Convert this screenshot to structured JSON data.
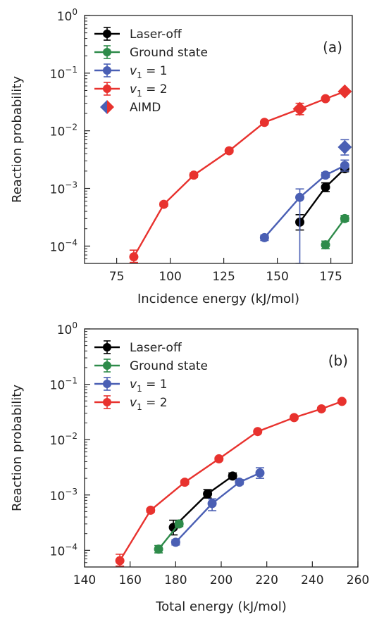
{
  "chart_data": [
    {
      "type": "line",
      "panel_label": "(a)",
      "xlabel": "Incidence energy (kJ/mol)",
      "ylabel": "Reaction probability",
      "xlim": [
        60,
        185
      ],
      "ylim": [
        5e-05,
        1
      ],
      "yscale": "log",
      "xticks": [
        75,
        100,
        125,
        150,
        175
      ],
      "yticks": [
        {
          "value": 1,
          "base": "10",
          "exp": "0"
        },
        {
          "value": 0.1,
          "base": "10",
          "exp": "−1"
        },
        {
          "value": 0.01,
          "base": "10",
          "exp": "−2"
        },
        {
          "value": 0.001,
          "base": "10",
          "exp": "−3"
        },
        {
          "value": 0.0001,
          "base": "10",
          "exp": "−4"
        }
      ],
      "legend_position": "upper-left",
      "series": [
        {
          "name": "Laser-off",
          "color": "#000000",
          "marker": "circle",
          "points": [
            {
              "x": 160.5,
              "y": 0.00026,
              "lo": 0.00019,
              "hi": 0.00035
            },
            {
              "x": 172.5,
              "y": 0.00105,
              "lo": 0.00088,
              "hi": 0.00125
            },
            {
              "x": 181.5,
              "y": 0.0022,
              "lo": 0.00195,
              "hi": 0.0025
            }
          ]
        },
        {
          "name": "Ground state",
          "color": "#2e8b4a",
          "marker": "circle",
          "points": [
            {
              "x": 172.5,
              "y": 0.000105,
              "lo": 9e-05,
              "hi": 0.000122
            },
            {
              "x": 181.5,
              "y": 0.0003,
              "lo": 0.00027,
              "hi": 0.00034
            }
          ]
        },
        {
          "name": "v1 = 1",
          "name_parts": [
            "v",
            "1",
            " = 1"
          ],
          "color": "#4a5fb4",
          "marker": "circle",
          "points": [
            {
              "x": 144,
              "y": 0.00014,
              "lo": 0.000125,
              "hi": 0.000155
            },
            {
              "x": 160.5,
              "y": 0.0007,
              "lo": 5e-05,
              "hi": 0.00098
            },
            {
              "x": 172.5,
              "y": 0.0017,
              "lo": 0.00155,
              "hi": 0.0019
            },
            {
              "x": 181.5,
              "y": 0.0025,
              "lo": 0.002,
              "hi": 0.0031
            }
          ]
        },
        {
          "name": "v1 = 2",
          "name_parts": [
            "v",
            "1",
            " = 2"
          ],
          "color": "#e8322e",
          "marker": "circle",
          "points": [
            {
              "x": 83,
              "y": 6.5e-05,
              "lo": 5.2e-05,
              "hi": 8.5e-05
            },
            {
              "x": 97,
              "y": 0.00053,
              "lo": 0.00049,
              "hi": 0.00057
            },
            {
              "x": 111,
              "y": 0.0017,
              "lo": 0.00155,
              "hi": 0.00185
            },
            {
              "x": 127.5,
              "y": 0.0045,
              "lo": 0.0042,
              "hi": 0.0048
            },
            {
              "x": 144,
              "y": 0.014,
              "lo": 0.0133,
              "hi": 0.0147
            },
            {
              "x": 160.5,
              "y": 0.024,
              "lo": 0.022,
              "hi": 0.026
            },
            {
              "x": 172.5,
              "y": 0.036,
              "lo": 0.034,
              "hi": 0.038
            },
            {
              "x": 181.5,
              "y": 0.048,
              "lo": 0.046,
              "hi": 0.05
            }
          ]
        },
        {
          "name": "AIMD",
          "color": "#4a5fb4",
          "color2": "#e8322e",
          "marker": "diamond",
          "connect": false,
          "points": [
            {
              "x": 160.5,
              "y": 0.024,
              "lo": 0.019,
              "hi": 0.03,
              "color": "#e8322e"
            },
            {
              "x": 181.5,
              "y": 0.048,
              "lo": 0.044,
              "hi": 0.053,
              "color": "#e8322e"
            },
            {
              "x": 181.5,
              "y": 0.0052,
              "lo": 0.0038,
              "hi": 0.007,
              "color": "#4a5fb4"
            }
          ]
        }
      ]
    },
    {
      "type": "line",
      "panel_label": "(b)",
      "xlabel": "Total energy (kJ/mol)",
      "ylabel": "Reaction probability",
      "xlim": [
        140,
        260
      ],
      "ylim": [
        5e-05,
        1
      ],
      "yscale": "log",
      "xticks": [
        140,
        160,
        180,
        200,
        220,
        240,
        260
      ],
      "yticks": [
        {
          "value": 1,
          "base": "10",
          "exp": "0"
        },
        {
          "value": 0.1,
          "base": "10",
          "exp": "−1"
        },
        {
          "value": 0.01,
          "base": "10",
          "exp": "−2"
        },
        {
          "value": 0.001,
          "base": "10",
          "exp": "−3"
        },
        {
          "value": 0.0001,
          "base": "10",
          "exp": "−4"
        }
      ],
      "legend_position": "upper-left",
      "series": [
        {
          "name": "Laser-off",
          "color": "#000000",
          "marker": "circle",
          "points": [
            {
              "x": 179,
              "y": 0.00026,
              "lo": 0.00019,
              "hi": 0.00035
            },
            {
              "x": 194,
              "y": 0.00105,
              "lo": 0.00088,
              "hi": 0.00125
            },
            {
              "x": 205,
              "y": 0.0022,
              "lo": 0.00195,
              "hi": 0.0025
            }
          ]
        },
        {
          "name": "Ground state",
          "color": "#2e8b4a",
          "marker": "circle",
          "points": [
            {
              "x": 172.5,
              "y": 0.000105,
              "lo": 9e-05,
              "hi": 0.000122
            },
            {
              "x": 181.5,
              "y": 0.0003,
              "lo": 0.00027,
              "hi": 0.00034
            }
          ]
        },
        {
          "name": "v1 = 1",
          "name_parts": [
            "v",
            "1",
            " = 1"
          ],
          "color": "#4a5fb4",
          "marker": "circle",
          "points": [
            {
              "x": 180,
              "y": 0.00014,
              "lo": 0.000125,
              "hi": 0.000155
            },
            {
              "x": 196,
              "y": 0.0007,
              "lo": 0.00052,
              "hi": 0.00085
            },
            {
              "x": 208,
              "y": 0.0017,
              "lo": 0.00155,
              "hi": 0.0019
            },
            {
              "x": 217,
              "y": 0.0025,
              "lo": 0.002,
              "hi": 0.0031
            }
          ]
        },
        {
          "name": "v1 = 2",
          "name_parts": [
            "v",
            "1",
            " = 2"
          ],
          "color": "#e8322e",
          "marker": "circle",
          "points": [
            {
              "x": 155.5,
              "y": 6.5e-05,
              "lo": 5.2e-05,
              "hi": 8.5e-05
            },
            {
              "x": 169,
              "y": 0.00053,
              "lo": 0.00049,
              "hi": 0.00057
            },
            {
              "x": 184,
              "y": 0.0017,
              "lo": 0.00155,
              "hi": 0.00185
            },
            {
              "x": 199,
              "y": 0.0045,
              "lo": 0.0042,
              "hi": 0.0048
            },
            {
              "x": 216,
              "y": 0.014,
              "lo": 0.0133,
              "hi": 0.0147
            },
            {
              "x": 232,
              "y": 0.025,
              "lo": 0.0235,
              "hi": 0.0265
            },
            {
              "x": 244,
              "y": 0.036,
              "lo": 0.034,
              "hi": 0.038
            },
            {
              "x": 253,
              "y": 0.049,
              "lo": 0.047,
              "hi": 0.051
            }
          ]
        }
      ]
    }
  ]
}
